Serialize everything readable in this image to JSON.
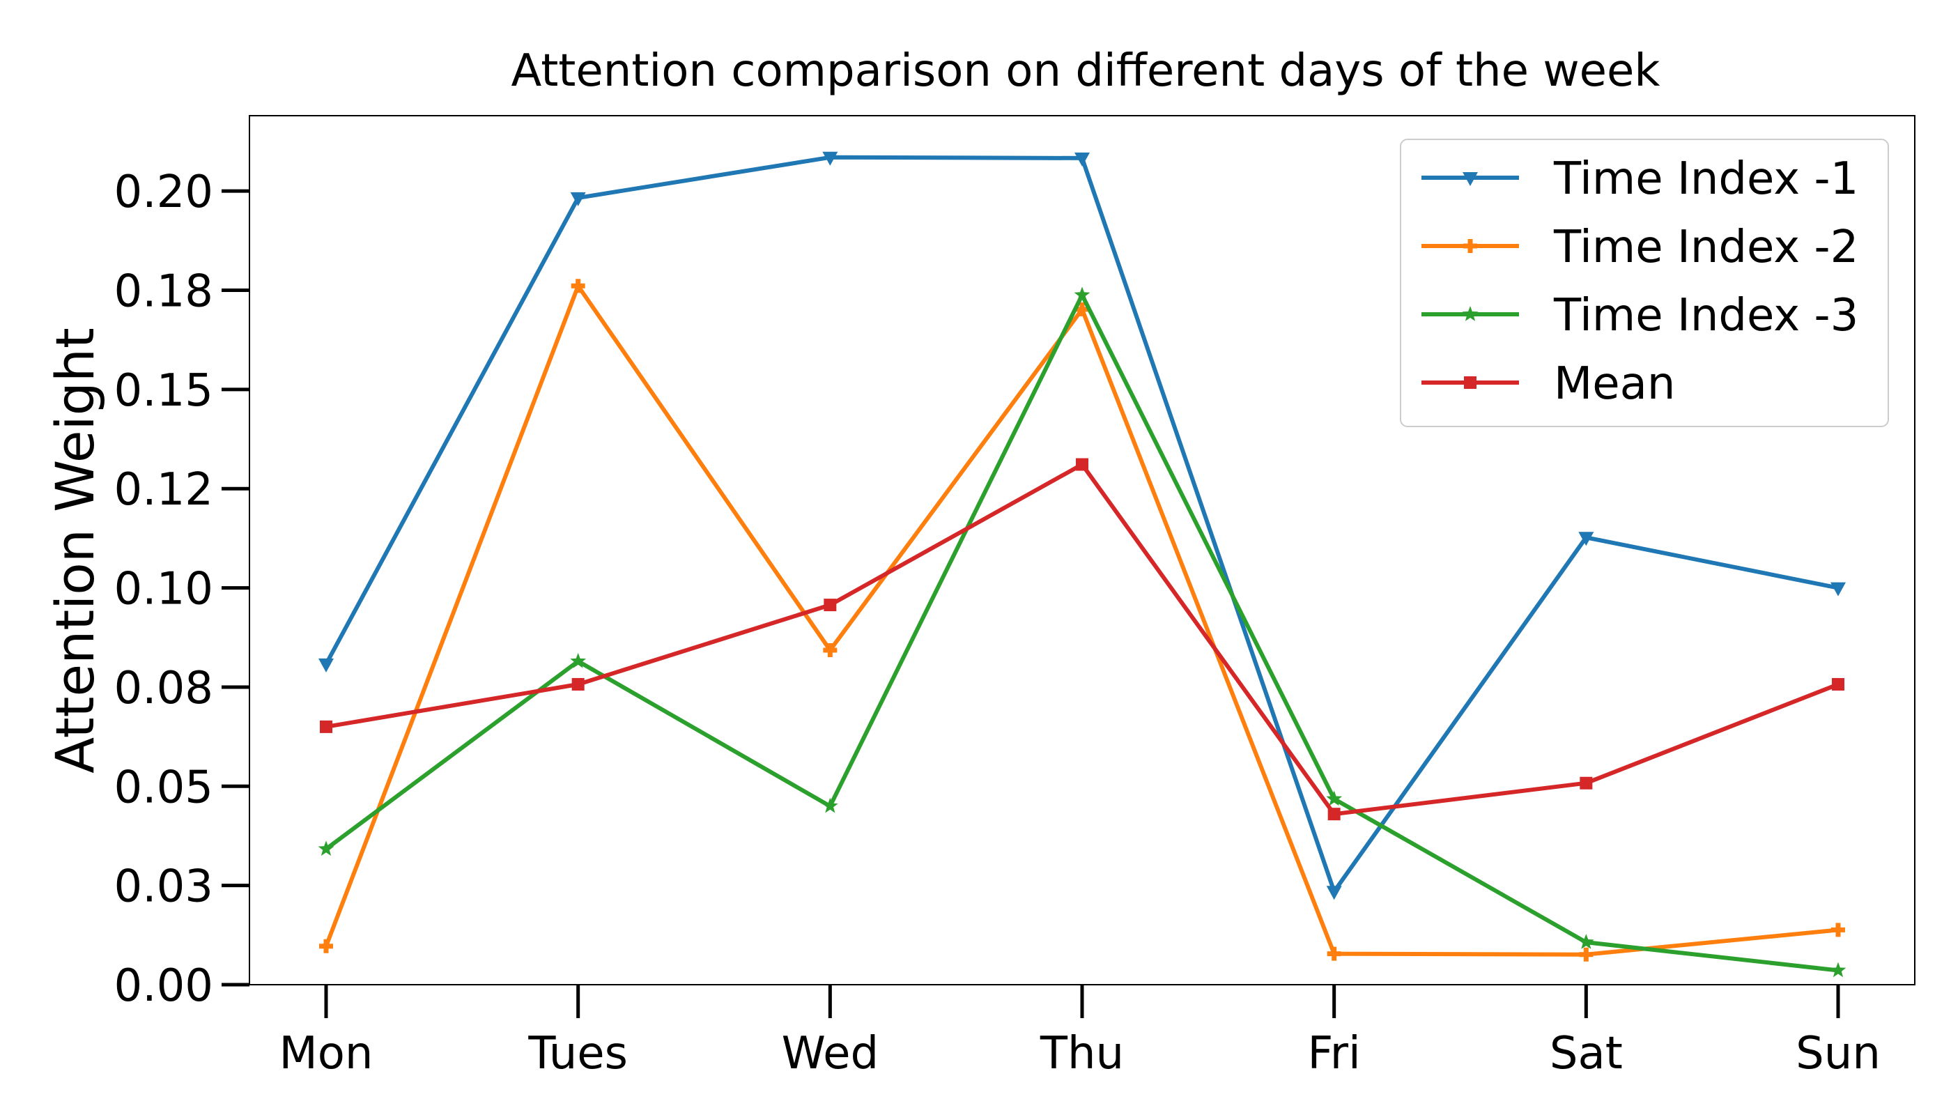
{
  "chart_data": {
    "type": "line",
    "title": "Attention comparison on different days of the week",
    "xlabel": "",
    "ylabel": "Attention Weight",
    "categories": [
      "Mon",
      "Tues",
      "Wed",
      "Thu",
      "Fri",
      "Sat",
      "Sun"
    ],
    "ylim": [
      0,
      0.219
    ],
    "ytick_values": [
      0.0,
      0.025,
      0.05,
      0.075,
      0.1,
      0.125,
      0.15,
      0.175,
      0.2
    ],
    "ytick_labels": [
      "0.00",
      "0.03",
      "0.05",
      "0.08",
      "0.10",
      "0.12",
      "0.15",
      "0.18",
      "0.20"
    ],
    "grid": false,
    "legend_position": "top-right",
    "series": [
      {
        "name": "Time Index -1",
        "color": "#1f77b4",
        "marker": "triangle-down",
        "values": [
          0.0808,
          0.1983,
          0.2085,
          0.2083,
          0.0235,
          0.1127,
          0.1
        ]
      },
      {
        "name": "Time Index -2",
        "color": "#ff7f0e",
        "marker": "plus",
        "values": [
          0.0097,
          0.1761,
          0.0843,
          0.1702,
          0.0078,
          0.0076,
          0.0138
        ]
      },
      {
        "name": "Time Index -3",
        "color": "#2ca02c",
        "marker": "star",
        "values": [
          0.0342,
          0.0815,
          0.045,
          0.1738,
          0.0468,
          0.0107,
          0.0036
        ]
      },
      {
        "name": "Mean",
        "color": "#d62728",
        "marker": "square",
        "values": [
          0.065,
          0.0757,
          0.0957,
          0.1311,
          0.043,
          0.0508,
          0.0757
        ]
      }
    ]
  }
}
